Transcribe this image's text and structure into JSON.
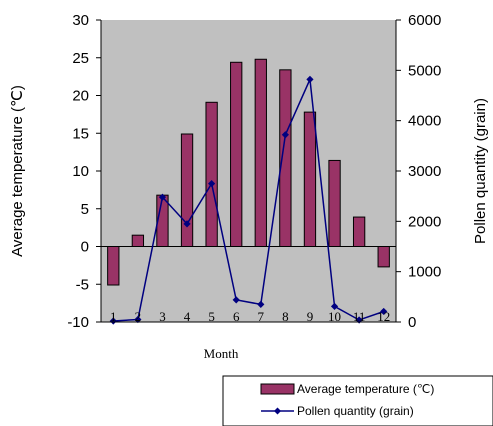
{
  "chart_data": {
    "type": "bar",
    "categories": [
      "1",
      "2",
      "3",
      "4",
      "5",
      "6",
      "7",
      "8",
      "9",
      "10",
      "11",
      "12"
    ],
    "series": [
      {
        "name": "Average temperature (℃)",
        "type": "bar",
        "axis": "left",
        "color": "#993366",
        "values": [
          -5.1,
          1.5,
          6.8,
          14.9,
          19.1,
          24.4,
          24.8,
          23.4,
          17.8,
          11.4,
          3.9,
          -2.7
        ]
      },
      {
        "name": "Pollen quantity (grain)",
        "type": "line",
        "axis": "right",
        "color": "#000080",
        "values": [
          20,
          50,
          2480,
          1950,
          2750,
          440,
          350,
          3720,
          4820,
          310,
          40,
          210
        ]
      }
    ],
    "xlabel": "Month",
    "ylabel": "Average temperature (℃)",
    "y2label": "Pollen quantity (grain)",
    "ylim": [
      -10,
      30
    ],
    "y2lim": [
      0,
      6000
    ],
    "yticks": [
      "-10",
      "-5",
      "0",
      "5",
      "10",
      "15",
      "20",
      "25",
      "30"
    ],
    "y2ticks": [
      "0",
      "1000",
      "2000",
      "3000",
      "4000",
      "5000",
      "6000"
    ],
    "plot_background": "#c0c0c0",
    "legend_position": "bottom-right"
  }
}
